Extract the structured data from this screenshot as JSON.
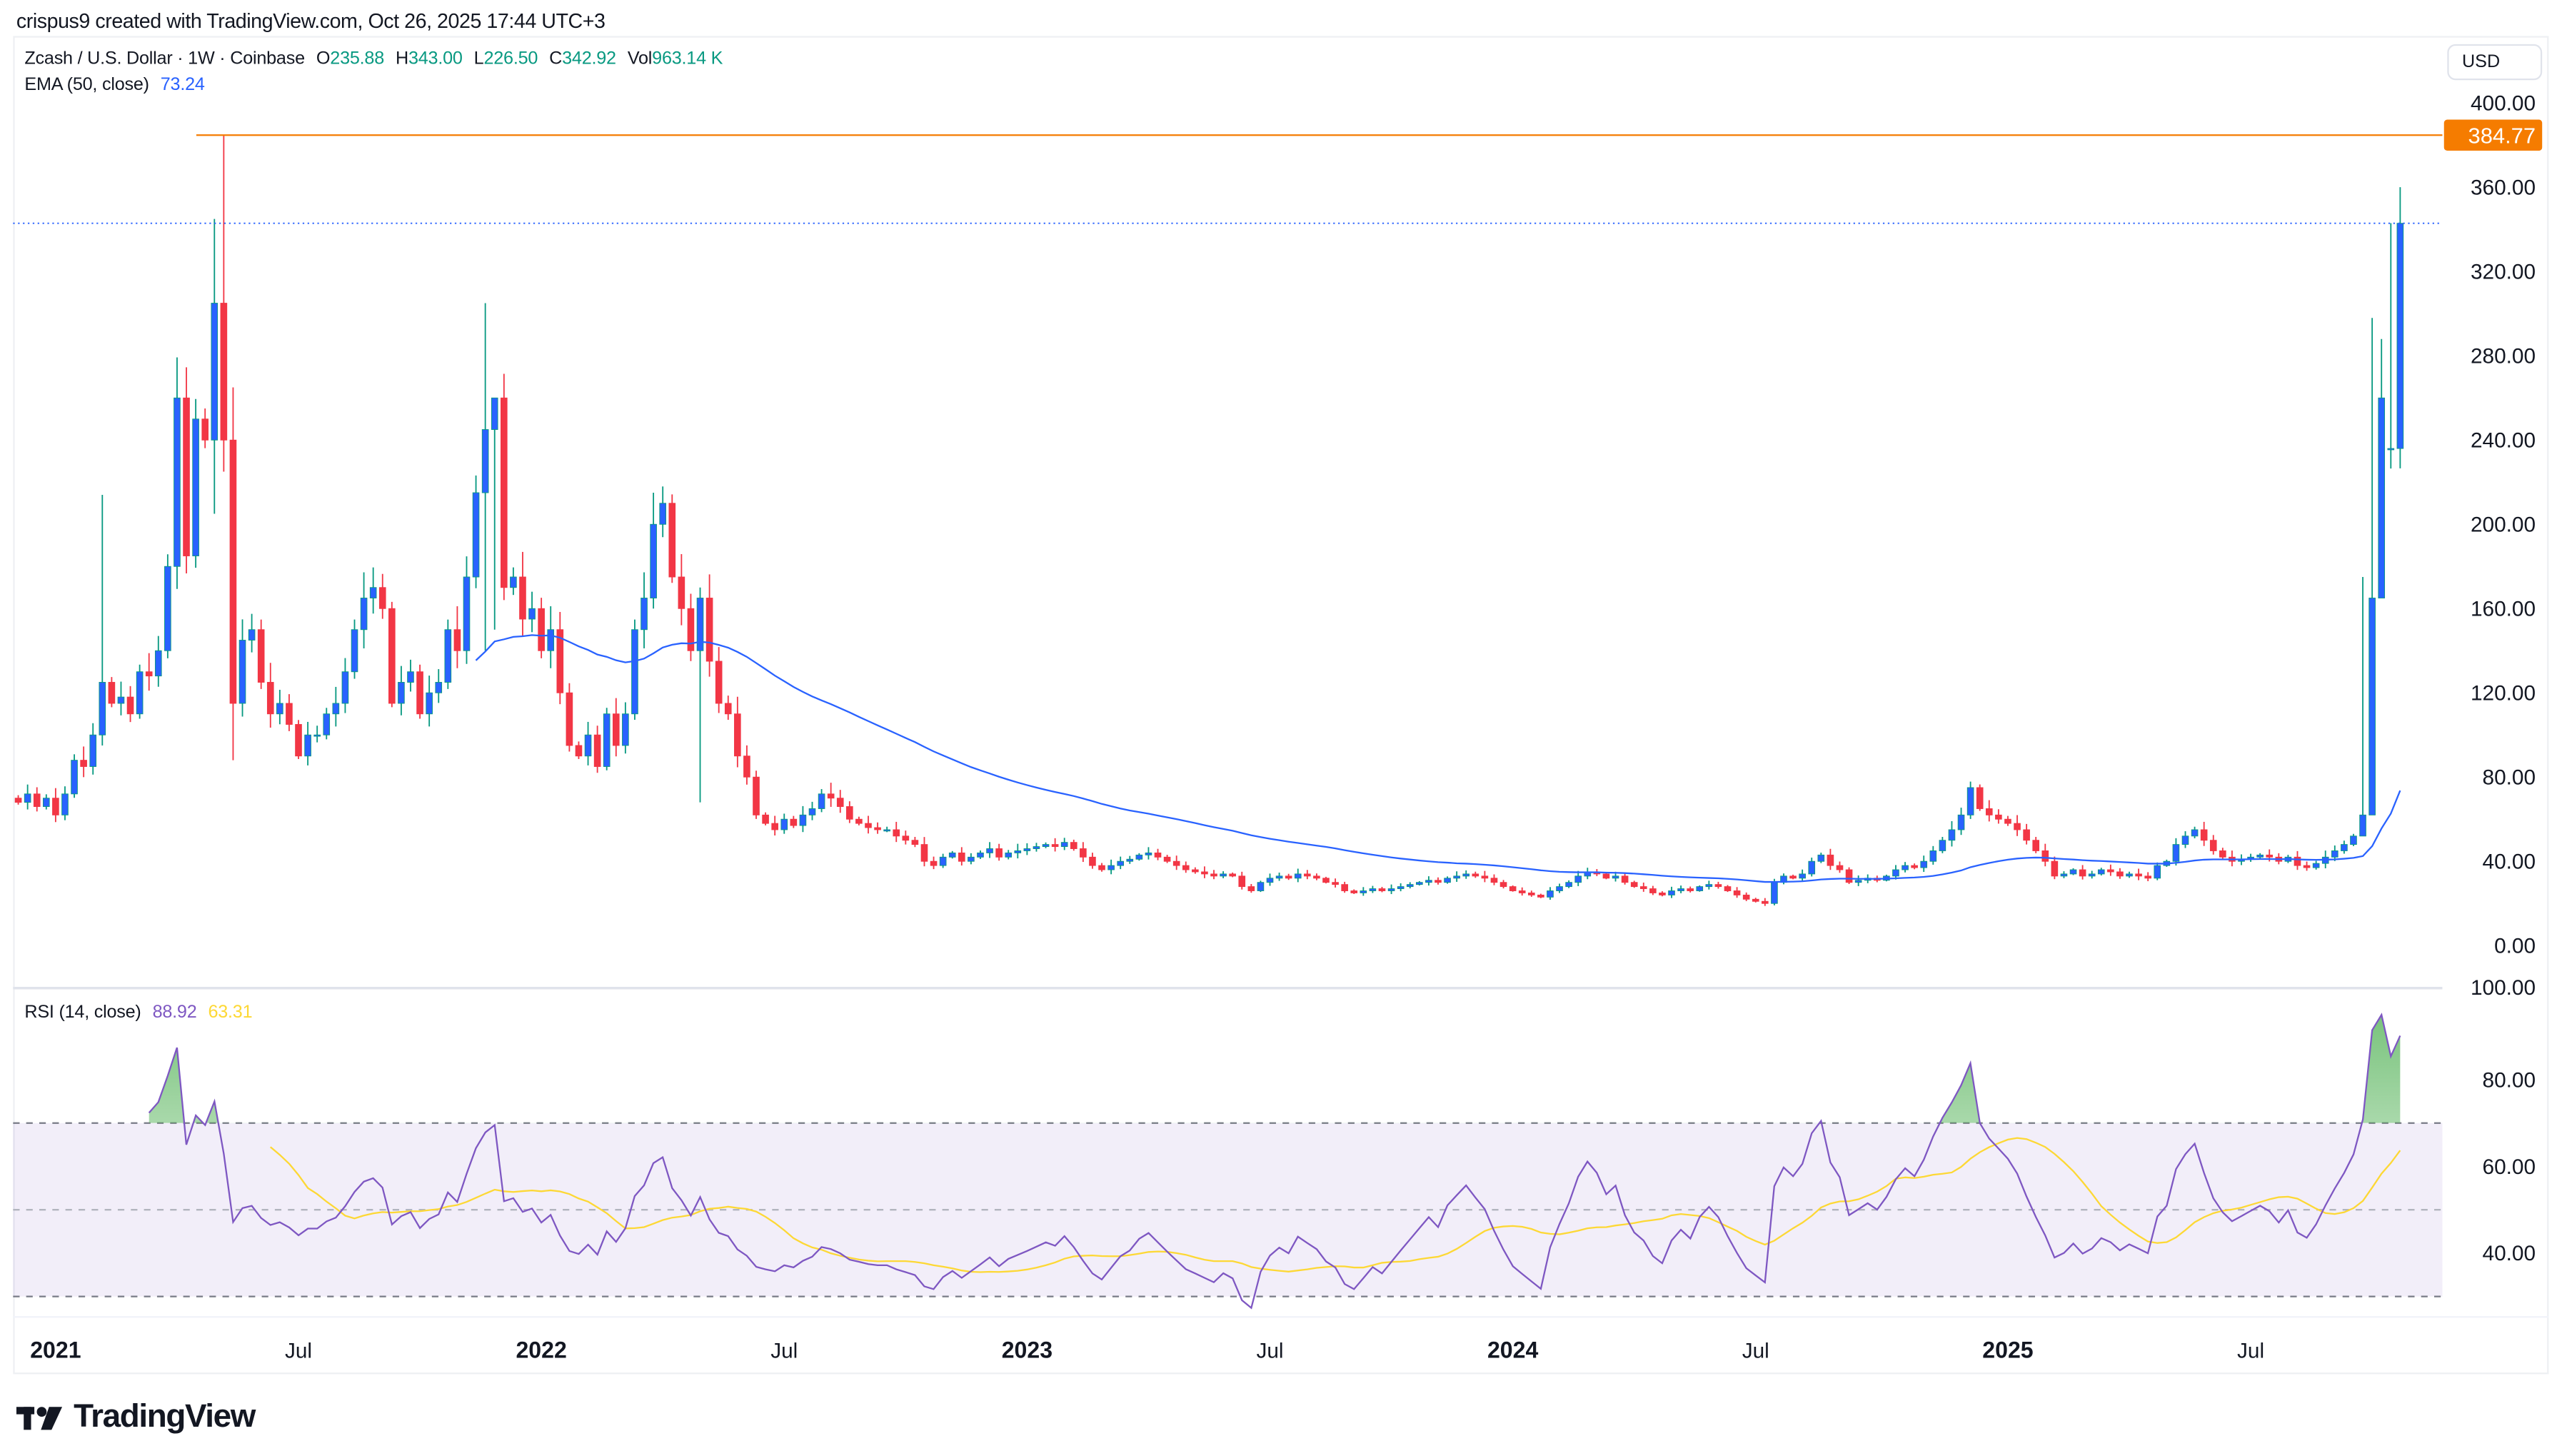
{
  "header": {
    "attribution": "crispus9 created with TradingView.com, Oct 26, 2025 17:44 UTC+3"
  },
  "legend": {
    "symbol": "Zcash / U.S. Dollar · 1W · Coinbase",
    "open_label": "O",
    "open": "235.88",
    "high_label": "H",
    "high": "343.00",
    "low_label": "L",
    "low": "226.50",
    "close_label": "C",
    "close": "342.92",
    "vol_label": "Vol",
    "vol": "963.14 K",
    "ema_label": "EMA (50, close)",
    "ema_value": "73.24",
    "rsi_label": "RSI (14, close)",
    "rsi_value": "88.92",
    "rsi_ma_value": "63.31"
  },
  "axis": {
    "currency": "USD",
    "price_ticks": [
      "400.00",
      "360.00",
      "320.00",
      "280.00",
      "240.00",
      "200.00",
      "160.00",
      "120.00",
      "80.00",
      "40.00",
      "0.00"
    ],
    "rsi_ticks": [
      "100.00",
      "80.00",
      "60.00",
      "40.00"
    ],
    "price_marker": "384.77"
  },
  "colors": {
    "up_body": "#2962ff",
    "up_wick": "#089981",
    "down": "#f23645",
    "ema": "#2962ff",
    "rsi": "#7e57c2",
    "rsi_ma": "#fdd835",
    "marker": "#f57c00",
    "band": "#7e57c2",
    "overbought": "#4caf50"
  },
  "chart_data": {
    "type": "candlestick",
    "title": "Zcash / U.S. Dollar · 1W · Coinbase",
    "interval": "1W",
    "first_week_offset": -4,
    "ylim": [
      -20,
      420
    ],
    "rsi_ylim": [
      0,
      107
    ],
    "horizontal_line": 384.77,
    "last_price_line": 342.92,
    "time_labels": [
      {
        "label": "2021",
        "week": 0,
        "bold": true
      },
      {
        "label": "Jul",
        "week": 26,
        "bold": false
      },
      {
        "label": "2022",
        "week": 52,
        "bold": true
      },
      {
        "label": "Jul",
        "week": 78,
        "bold": false
      },
      {
        "label": "2023",
        "week": 104,
        "bold": true
      },
      {
        "label": "Jul",
        "week": 130,
        "bold": false
      },
      {
        "label": "2024",
        "week": 156,
        "bold": true
      },
      {
        "label": "Jul",
        "week": 182,
        "bold": false
      },
      {
        "label": "2025",
        "week": 209,
        "bold": true
      },
      {
        "label": "Jul",
        "week": 235,
        "bold": false
      }
    ],
    "first_open": 70,
    "closes": [
      68,
      72,
      66,
      70,
      62,
      72,
      88,
      85,
      100,
      125,
      115,
      118,
      110,
      130,
      128,
      140,
      180,
      260,
      185,
      250,
      240,
      305,
      240,
      115,
      145,
      150,
      125,
      110,
      115,
      105,
      90,
      100,
      100,
      110,
      115,
      130,
      150,
      165,
      170,
      160,
      115,
      125,
      130,
      110,
      120,
      125,
      150,
      140,
      175,
      215,
      245,
      260,
      170,
      175,
      155,
      160,
      140,
      150,
      120,
      95,
      90,
      100,
      85,
      110,
      95,
      110,
      150,
      165,
      200,
      210,
      175,
      160,
      140,
      165,
      135,
      115,
      110,
      90,
      80,
      62,
      58,
      55,
      60,
      57,
      62,
      65,
      72,
      70,
      66,
      60,
      58,
      56,
      55,
      55,
      52,
      50,
      48,
      40,
      38,
      42,
      44,
      40,
      42,
      44,
      46,
      42,
      44,
      45,
      46,
      47,
      48,
      47,
      49,
      46,
      42,
      38,
      36,
      38,
      40,
      41,
      43,
      44,
      42,
      40,
      38,
      36,
      35,
      34,
      33,
      34,
      33,
      28,
      26,
      30,
      32,
      33,
      32,
      34,
      33,
      32,
      30,
      29,
      26,
      25,
      26,
      27,
      26,
      27,
      28,
      29,
      30,
      31,
      30,
      32,
      33,
      34,
      33,
      32,
      30,
      28,
      26,
      25,
      24,
      23,
      26,
      28,
      30,
      33,
      35,
      34,
      32,
      33,
      30,
      28,
      27,
      25,
      24,
      26,
      27,
      26,
      28,
      29,
      28,
      26,
      24,
      22,
      21,
      20,
      30,
      33,
      32,
      34,
      40,
      43,
      38,
      36,
      30,
      31,
      32,
      31,
      33,
      36,
      38,
      37,
      40,
      45,
      50,
      55,
      62,
      75,
      65,
      62,
      60,
      58,
      55,
      50,
      45,
      40,
      33,
      34,
      36,
      33,
      34,
      36,
      35,
      33,
      34,
      33,
      32,
      38,
      40,
      48,
      52,
      55,
      50,
      45,
      42,
      40,
      41,
      42,
      43,
      42,
      40,
      42,
      38,
      37,
      39,
      42,
      45,
      48,
      52,
      62,
      165,
      260,
      236,
      342.92
    ],
    "wick_overrides": [
      {
        "week": 5,
        "high": 214,
        "low": 95
      },
      {
        "week": 17,
        "high": 345,
        "low": 205
      },
      {
        "week": 18,
        "high": 385,
        "low": 225
      },
      {
        "week": 19,
        "high": 265,
        "low": 88
      },
      {
        "week": 46,
        "high": 305,
        "low": 140
      },
      {
        "week": 47,
        "high": 255,
        "low": 150
      },
      {
        "week": 64,
        "high": 215,
        "low": 160
      },
      {
        "week": 69,
        "high": 170,
        "low": 68
      },
      {
        "week": 247,
        "high": 175,
        "low": 58
      },
      {
        "week": 248,
        "high": 298,
        "low": 125
      },
      {
        "week": 249,
        "high": 288,
        "low": 188
      },
      {
        "week": 250,
        "high": 343.0,
        "low": 226.5,
        "open": 235.88
      }
    ],
    "indicators": {
      "ema_length": 50,
      "rsi_length": 14,
      "rsi_ma_length": 14,
      "rsi_levels": [
        70,
        50,
        30
      ]
    }
  },
  "logo": {
    "text": "TradingView"
  }
}
